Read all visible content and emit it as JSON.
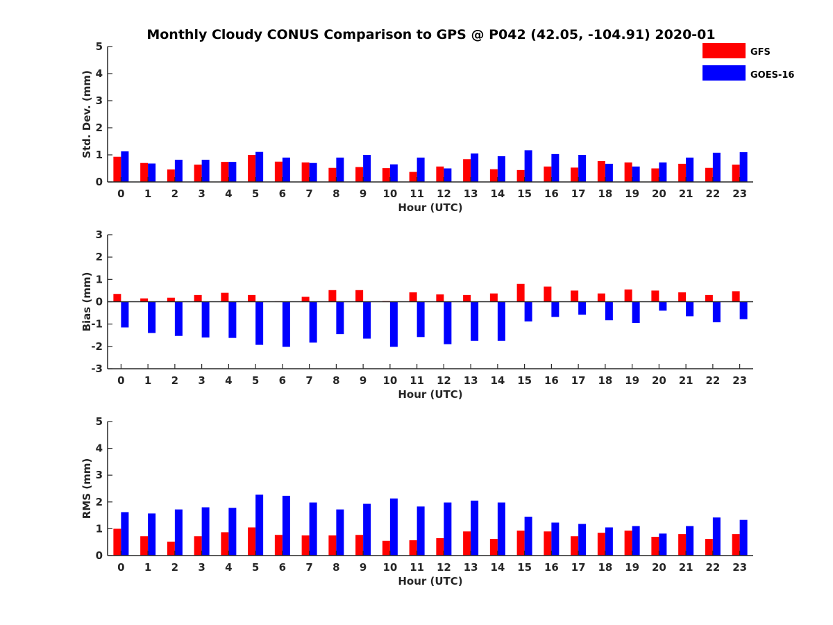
{
  "title": "Monthly Cloudy CONUS Comparison to GPS @ P042 (42.05, -104.91) 2020-01",
  "legend": [
    {
      "name": "GFS",
      "color": "#ff0000"
    },
    {
      "name": "GOES-16",
      "color": "#0000ff"
    }
  ],
  "chart_data": [
    {
      "type": "bar",
      "ylabel": "Std. Dev. (mm)",
      "xlabel": "Hour (UTC)",
      "ylim": [
        0,
        5
      ],
      "yticks": [
        0,
        1,
        2,
        3,
        4,
        5
      ],
      "categories": [
        "0",
        "1",
        "2",
        "3",
        "4",
        "5",
        "6",
        "7",
        "8",
        "9",
        "10",
        "11",
        "12",
        "13",
        "14",
        "15",
        "16",
        "17",
        "18",
        "19",
        "20",
        "21",
        "22",
        "23"
      ],
      "series": [
        {
          "name": "GFS",
          "values": [
            0.93,
            0.7,
            0.46,
            0.64,
            0.74,
            1.0,
            0.75,
            0.72,
            0.52,
            0.55,
            0.51,
            0.37,
            0.57,
            0.84,
            0.47,
            0.44,
            0.57,
            0.53,
            0.77,
            0.72,
            0.5,
            0.67,
            0.52,
            0.64
          ]
        },
        {
          "name": "GOES-16",
          "values": [
            1.13,
            0.68,
            0.82,
            0.82,
            0.74,
            1.11,
            0.9,
            0.7,
            0.9,
            1.0,
            0.65,
            0.9,
            0.5,
            1.05,
            0.95,
            1.17,
            1.03,
            1.0,
            0.67,
            0.57,
            0.72,
            0.9,
            1.08,
            1.1
          ]
        }
      ]
    },
    {
      "type": "bar",
      "ylabel": "Bias (mm)",
      "xlabel": "Hour (UTC)",
      "ylim": [
        -3,
        3
      ],
      "yticks": [
        -3,
        -2,
        -1,
        0,
        1,
        2,
        3
      ],
      "categories": [
        "0",
        "1",
        "2",
        "3",
        "4",
        "5",
        "6",
        "7",
        "8",
        "9",
        "10",
        "11",
        "12",
        "13",
        "14",
        "15",
        "16",
        "17",
        "18",
        "19",
        "20",
        "21",
        "22",
        "23"
      ],
      "series": [
        {
          "name": "GFS",
          "values": [
            0.35,
            0.15,
            0.18,
            0.3,
            0.4,
            0.3,
            0.02,
            0.22,
            0.52,
            0.52,
            0.03,
            0.42,
            0.33,
            0.3,
            0.37,
            0.8,
            0.68,
            0.5,
            0.37,
            0.55,
            0.5,
            0.42,
            0.3,
            0.47
          ]
        },
        {
          "name": "GOES-16",
          "values": [
            -1.15,
            -1.4,
            -1.53,
            -1.6,
            -1.62,
            -1.93,
            -2.02,
            -1.83,
            -1.45,
            -1.65,
            -2.02,
            -1.58,
            -1.9,
            -1.75,
            -1.75,
            -0.88,
            -0.68,
            -0.58,
            -0.83,
            -0.95,
            -0.4,
            -0.65,
            -0.92,
            -0.78
          ]
        }
      ]
    },
    {
      "type": "bar",
      "ylabel": "RMS (mm)",
      "xlabel": "Hour (UTC)",
      "ylim": [
        0,
        5
      ],
      "yticks": [
        0,
        1,
        2,
        3,
        4,
        5
      ],
      "categories": [
        "0",
        "1",
        "2",
        "3",
        "4",
        "5",
        "6",
        "7",
        "8",
        "9",
        "10",
        "11",
        "12",
        "13",
        "14",
        "15",
        "16",
        "17",
        "18",
        "19",
        "20",
        "21",
        "22",
        "23"
      ],
      "series": [
        {
          "name": "GFS",
          "values": [
            1.0,
            0.72,
            0.52,
            0.72,
            0.87,
            1.05,
            0.77,
            0.75,
            0.75,
            0.77,
            0.55,
            0.57,
            0.65,
            0.9,
            0.62,
            0.93,
            0.9,
            0.72,
            0.85,
            0.93,
            0.7,
            0.8,
            0.62,
            0.8
          ]
        },
        {
          "name": "GOES-16",
          "values": [
            1.62,
            1.57,
            1.72,
            1.8,
            1.78,
            2.27,
            2.23,
            1.98,
            1.72,
            1.93,
            2.13,
            1.83,
            1.98,
            2.05,
            1.98,
            1.45,
            1.23,
            1.18,
            1.05,
            1.1,
            0.82,
            1.1,
            1.42,
            1.33
          ]
        }
      ]
    }
  ]
}
